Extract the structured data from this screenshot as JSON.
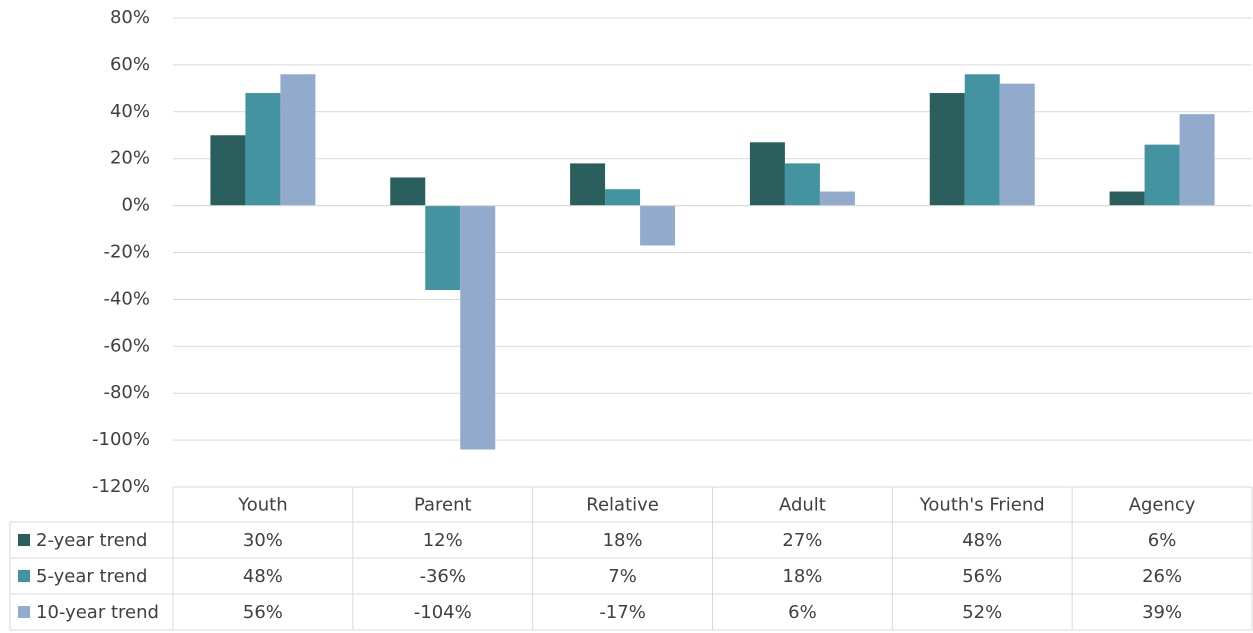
{
  "chart_data": {
    "type": "bar",
    "categories": [
      "Youth",
      "Parent",
      "Relative",
      "Adult",
      "Youth's Friend",
      "Agency"
    ],
    "series": [
      {
        "name": "2-year trend",
        "color": "#2a5f5e",
        "values": [
          30,
          12,
          18,
          27,
          48,
          6
        ],
        "value_labels": [
          "30%",
          "12%",
          "18%",
          "27%",
          "48%",
          "6%"
        ]
      },
      {
        "name": "5-year trend",
        "color": "#4393a0",
        "values": [
          48,
          -36,
          7,
          18,
          56,
          26
        ],
        "value_labels": [
          "48%",
          "-36%",
          "7%",
          "18%",
          "56%",
          "26%"
        ]
      },
      {
        "name": "10-year trend",
        "color": "#92abcc",
        "values": [
          56,
          -104,
          -17,
          6,
          52,
          39
        ],
        "value_labels": [
          "56%",
          "-104%",
          "-17%",
          "6%",
          "52%",
          "39%"
        ]
      }
    ],
    "ylim": [
      -120,
      80
    ],
    "yticks": [
      {
        "value": 80,
        "label": "80%"
      },
      {
        "value": 60,
        "label": "60%"
      },
      {
        "value": 40,
        "label": "40%"
      },
      {
        "value": 20,
        "label": "20%"
      },
      {
        "value": 0,
        "label": "0%"
      },
      {
        "value": -20,
        "label": "-20%"
      },
      {
        "value": -40,
        "label": "-40%"
      },
      {
        "value": -60,
        "label": "-60%"
      },
      {
        "value": -80,
        "label": "-80%"
      },
      {
        "value": -100,
        "label": "-100%"
      },
      {
        "value": -120,
        "label": "-120%"
      }
    ],
    "grid": true
  }
}
